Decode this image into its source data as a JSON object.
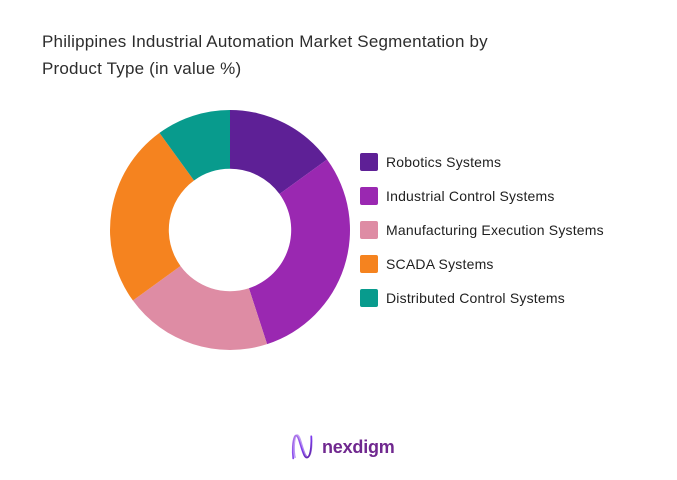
{
  "title": {
    "line1": "Philippines Industrial Automation Market Segmentation by",
    "line2": "Product Type (in value %)"
  },
  "chart_data": {
    "type": "pie",
    "subtype": "donut",
    "title": "Philippines Industrial Automation Market Segmentation by Product Type (in value %)",
    "labels": [
      "Robotics Systems",
      "Industrial Control Systems",
      "Manufacturing Execution Systems",
      "SCADA Systems",
      "Distributed Control Systems"
    ],
    "values": [
      15,
      30,
      20,
      25,
      10
    ],
    "unit": "percent",
    "colors": [
      "#5E2096",
      "#9A28B1",
      "#DE8CA4",
      "#F5831F",
      "#089B8D"
    ],
    "start_angle_deg": 0,
    "direction": "clockwise",
    "donut_hole_ratio": 0.51,
    "legend_position": "right",
    "data_labels_shown": false
  },
  "footer": {
    "brand": "nexdigm",
    "brand_color": "#70288f",
    "logo_icon": "nexdigm-squiggle-n"
  }
}
